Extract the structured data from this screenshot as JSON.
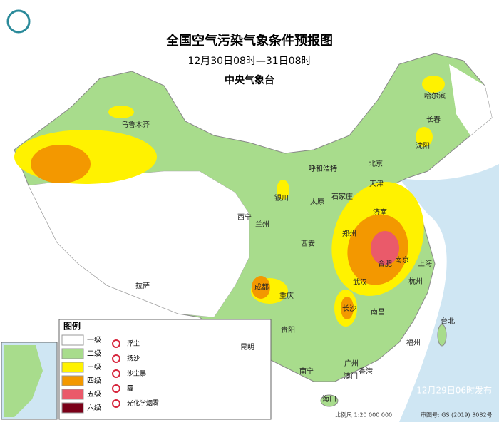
{
  "header": {
    "title": "全国空气污染气象条件预报图",
    "subtitle": "12月30日08时—31日08时",
    "issuer": "中央气象台"
  },
  "legend": {
    "title": "图例",
    "levels": [
      {
        "label": "一级",
        "color": "#ffffff"
      },
      {
        "label": "二级",
        "color": "#a8dc8c"
      },
      {
        "label": "三级",
        "color": "#fff200"
      },
      {
        "label": "四级",
        "color": "#f39800"
      },
      {
        "label": "五级",
        "color": "#ea5a6a"
      },
      {
        "label": "六级",
        "color": "#7a0018"
      }
    ],
    "symbols": [
      "浮尘",
      "扬沙",
      "沙尘暴",
      "霾",
      "光化学烟雾"
    ]
  },
  "cities": [
    "哈尔滨",
    "长春",
    "沈阳",
    "乌鲁木齐",
    "北京",
    "天津",
    "呼和浩特",
    "银川",
    "石家庄",
    "太原",
    "济南",
    "西宁",
    "兰州",
    "郑州",
    "西安",
    "合肥",
    "南京",
    "上海",
    "成都",
    "重庆",
    "武汉",
    "杭州",
    "长沙",
    "南昌",
    "拉萨",
    "贵阳",
    "福州",
    "台北",
    "昆明",
    "广州",
    "南宁",
    "香港",
    "澳门",
    "海口"
  ],
  "footer": {
    "issued": "12月29日06时发布",
    "scale": "比例尺 1:20 000 000",
    "review": "审图号: GS (2019) 3082号"
  }
}
